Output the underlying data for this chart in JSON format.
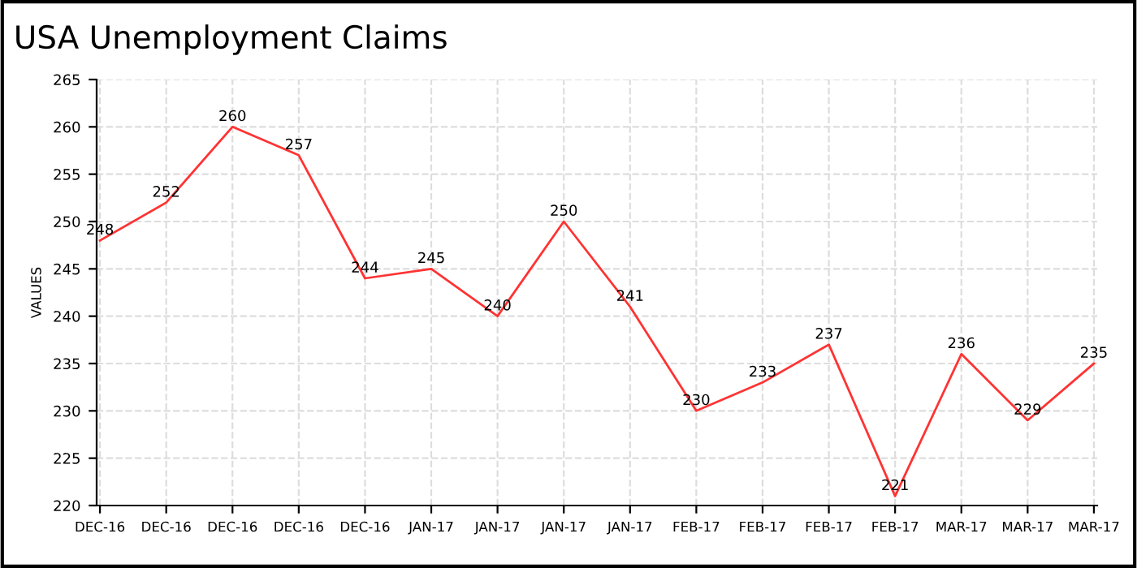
{
  "chart_data": {
    "type": "line",
    "title": "USA Unemployment Claims",
    "ylabel": "VALUES",
    "categories": [
      "DEC-16",
      "DEC-16",
      "DEC-16",
      "DEC-16",
      "DEC-16",
      "JAN-17",
      "JAN-17",
      "JAN-17",
      "JAN-17",
      "FEB-17",
      "FEB-17",
      "FEB-17",
      "FEB-17",
      "MAR-17",
      "MAR-17",
      "MAR-17"
    ],
    "series": [
      {
        "color": "#ff3333",
        "values": [
          248,
          252,
          260,
          257,
          244,
          245,
          240,
          250,
          241,
          230,
          233,
          237,
          221,
          236,
          229,
          235
        ]
      }
    ],
    "ylim": [
      220,
      265
    ],
    "yticks": [
      220,
      225,
      230,
      235,
      240,
      245,
      250,
      255,
      260,
      265
    ],
    "grid": true,
    "data_labels": true,
    "marker": "none",
    "line_style": "solid"
  }
}
